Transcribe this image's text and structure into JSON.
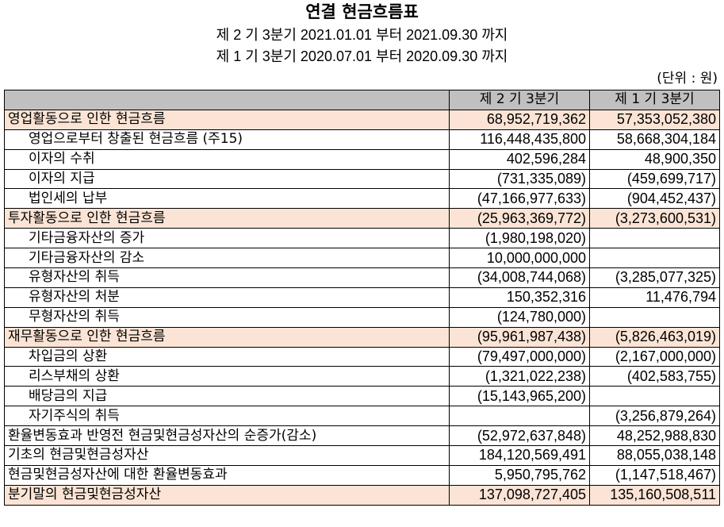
{
  "title": "연결 현금흐름표",
  "period_line_1": "제 2 기 3분기 2021.01.01 부터 2021.09.30 까지",
  "period_line_2": "제 1 기 3분기 2020.07.01 부터 2020.09.30 까지",
  "unit": "(단위 : 원)",
  "columns": [
    "",
    "제 2 기 3분기",
    "제 1 기 3분기"
  ],
  "colors": {
    "header_bg": "#c0c0c0",
    "highlight_bg": "#fbe4d5"
  },
  "rows": [
    {
      "label": "영업활동으로 인한 현금흐름",
      "current": "68,952,719,362",
      "prior": "57,353,052,380"
    },
    {
      "label": "영업으로부터 창출된 현금흐름 (주15)",
      "current": "116,448,435,800",
      "prior": "58,668,304,184"
    },
    {
      "label": "이자의 수취",
      "current": "402,596,284",
      "prior": "48,900,350"
    },
    {
      "label": "이자의 지급",
      "current": "(731,335,089)",
      "prior": "(459,699,717)"
    },
    {
      "label": "법인세의 납부",
      "current": "(47,166,977,633)",
      "prior": "(904,452,437)"
    },
    {
      "label": "투자활동으로 인한 현금흐름",
      "current": "(25,963,369,772)",
      "prior": "(3,273,600,531)"
    },
    {
      "label": "기타금융자산의 증가",
      "current": "(1,980,198,020)",
      "prior": ""
    },
    {
      "label": "기타금융자산의 감소",
      "current": "10,000,000,000",
      "prior": ""
    },
    {
      "label": "유형자산의 취득",
      "current": "(34,008,744,068)",
      "prior": "(3,285,077,325)"
    },
    {
      "label": "유형자산의 처분",
      "current": "150,352,316",
      "prior": "11,476,794"
    },
    {
      "label": "무형자산의 취득",
      "current": "(124,780,000)",
      "prior": ""
    },
    {
      "label": "재무활동으로 인한 현금흐름",
      "current": "(95,961,987,438)",
      "prior": "(5,826,463,019)"
    },
    {
      "label": "차입금의 상환",
      "current": "(79,497,000,000)",
      "prior": "(2,167,000,000)"
    },
    {
      "label": "리스부채의 상환",
      "current": "(1,321,022,238)",
      "prior": "(402,583,755)"
    },
    {
      "label": "배당금의 지급",
      "current": "(15,143,965,200)",
      "prior": ""
    },
    {
      "label": "자기주식의 취득",
      "current": "",
      "prior": "(3,256,879,264)"
    },
    {
      "label": "환율변동효과 반영전 현금및현금성자산의 순증가(감소)",
      "current": "(52,972,637,848)",
      "prior": "48,252,988,830"
    },
    {
      "label": "기초의 현금및현금성자산",
      "current": "184,120,569,491",
      "prior": "88,055,038,148"
    },
    {
      "label": "현금및현금성자산에 대한 환율변동효과",
      "current": "5,950,795,762",
      "prior": "(1,147,518,467)"
    },
    {
      "label": "분기말의 현금및현금성자산",
      "current": "137,098,727,405",
      "prior": "135,160,508,511"
    }
  ]
}
